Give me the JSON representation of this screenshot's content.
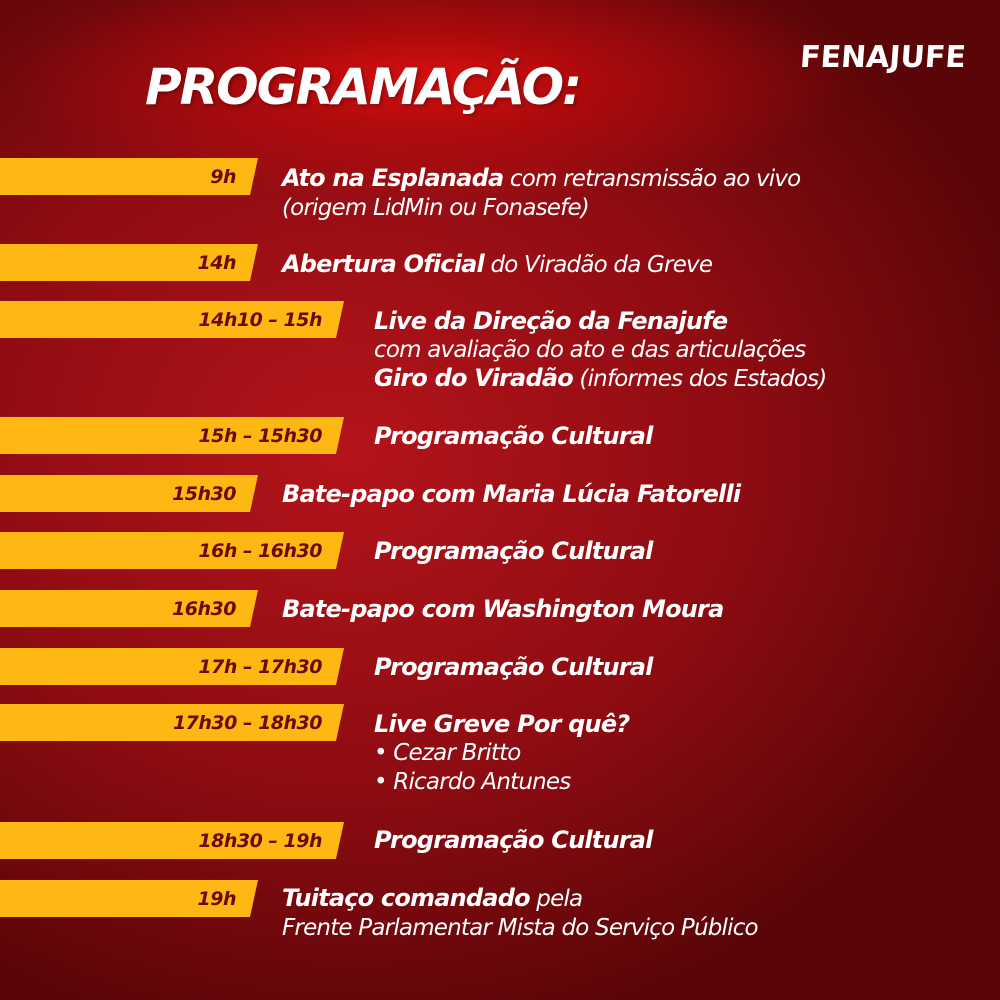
{
  "logo": "FENAJUFE",
  "title": "PROGRAMAÇÃO:",
  "items": [
    {
      "time": "9h",
      "bold": "Ato na Esplanada",
      "rest": " com retransmissão ao vivo",
      "line2": "(origem LidMin ou Fonasefe)"
    },
    {
      "time": "14h",
      "bold": "Abertura Oficial",
      "rest": " do Viradão da Greve"
    },
    {
      "time": "14h10 – 15h",
      "bold": "Live da Direção da Fenajufe",
      "line2": "com avaliação do ato e das articulações",
      "bold3": "Giro do Viradão",
      "rest3": "  (informes dos Estados)"
    },
    {
      "time": "15h – 15h30",
      "bold": "Programação Cultural"
    },
    {
      "time": "15h30",
      "bold": "Bate-papo com Maria Lúcia Fatorelli"
    },
    {
      "time": "16h – 16h30",
      "bold": "Programação Cultural"
    },
    {
      "time": "16h30",
      "bold": "Bate-papo com Washington Moura"
    },
    {
      "time": "17h – 17h30",
      "bold": "Programação Cultural"
    },
    {
      "time": "17h30 – 18h30",
      "bold": "Live Greve Por quê?",
      "line2": "• Cezar Britto",
      "line3": "• Ricardo Antunes"
    },
    {
      "time": "18h30 – 19h",
      "bold": "Programação Cultural"
    },
    {
      "time": "19h",
      "bold": "Tuitaço comandado",
      "rest": " pela",
      "line2": "Frente Parlamentar Mista do Serviço Público"
    }
  ],
  "colors": {
    "bar": "#fdb813",
    "time_text": "#6b0a0a",
    "background": "#a0101a"
  }
}
